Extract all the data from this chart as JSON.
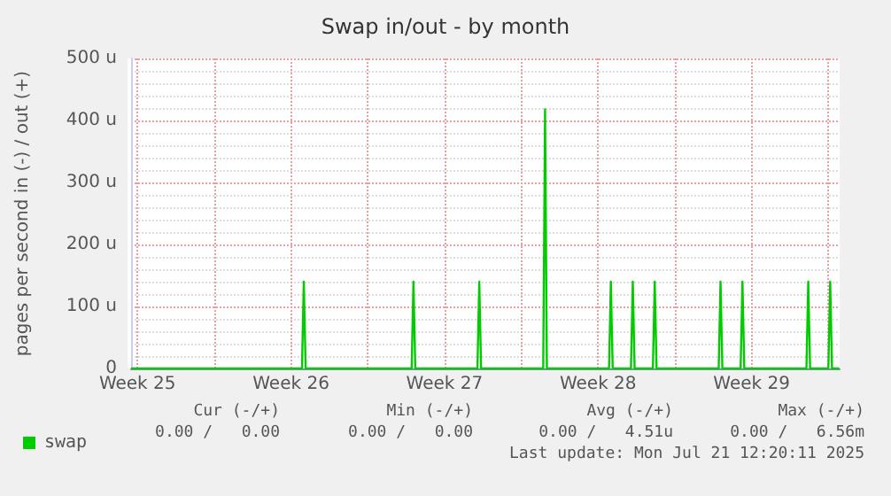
{
  "chart_data": {
    "type": "line",
    "title": "Swap in/out - by month",
    "ylabel": "pages per second in (-) / out (+)",
    "x": [
      "2025-06-19T05:00",
      "2025-06-27T00:00",
      "2025-06-27T02:00",
      "2025-06-27T04:00",
      "2025-07-02T00:00",
      "2025-07-02T02:00",
      "2025-07-02T04:00",
      "2025-07-05T00:00",
      "2025-07-05T02:00",
      "2025-07-05T04:00",
      "2025-07-08T00:00",
      "2025-07-08T02:00",
      "2025-07-08T04:00",
      "2025-07-11T00:00",
      "2025-07-11T02:00",
      "2025-07-11T04:00",
      "2025-07-12T00:00",
      "2025-07-12T02:00",
      "2025-07-12T04:00",
      "2025-07-13T00:00",
      "2025-07-13T02:00",
      "2025-07-13T04:00",
      "2025-07-16T00:00",
      "2025-07-16T02:00",
      "2025-07-16T04:00",
      "2025-07-17T00:00",
      "2025-07-17T02:00",
      "2025-07-17T04:00",
      "2025-07-20T00:00",
      "2025-07-20T02:00",
      "2025-07-20T04:00",
      "2025-07-21T00:00",
      "2025-07-21T02:00",
      "2025-07-21T04:00",
      "2025-07-21T12:00"
    ],
    "series": [
      {
        "name": "swap",
        "color": "#00cc00",
        "values": [
          0,
          0,
          140,
          0,
          0,
          140,
          0,
          0,
          140,
          0,
          0,
          418,
          0,
          0,
          140,
          0,
          0,
          140,
          0,
          0,
          140,
          0,
          0,
          140,
          0,
          0,
          140,
          0,
          0,
          140,
          0,
          0,
          140,
          0,
          0
        ]
      }
    ],
    "xlim": [
      "2025-06-19T05:00",
      "2025-07-21T12:20"
    ],
    "xticks": [
      {
        "value": "2025-06-19T12:00",
        "label": "Week 25"
      },
      {
        "value": "2025-06-23T00:00",
        "label": null
      },
      {
        "value": "2025-06-26T12:00",
        "label": "Week 26"
      },
      {
        "value": "2025-06-30T00:00",
        "label": null
      },
      {
        "value": "2025-07-03T12:00",
        "label": "Week 27"
      },
      {
        "value": "2025-07-07T00:00",
        "label": null
      },
      {
        "value": "2025-07-10T12:00",
        "label": "Week 28"
      },
      {
        "value": "2025-07-14T00:00",
        "label": null
      },
      {
        "value": "2025-07-17T12:00",
        "label": "Week 29"
      },
      {
        "value": "2025-07-21T00:00",
        "label": null
      }
    ],
    "ylim": [
      0,
      500
    ],
    "yticks": [
      0,
      {
        "value": 100,
        "label": "100 u"
      },
      {
        "value": 200,
        "label": "200 u"
      },
      {
        "value": 300,
        "label": "300 u"
      },
      {
        "value": 400,
        "label": "400 u"
      },
      {
        "value": 500,
        "label": "500 u"
      }
    ],
    "grid": true,
    "legend": "bottom left",
    "marker": "none",
    "line_style": "solid",
    "annotations": [
      "Cur (-/+)",
      "Min (-/+)",
      "Avg (-/+)",
      "Max (-/+)",
      "0.00 /   0.00",
      "0.00 /   0.00",
      "0.00 /   4.51u",
      "0.00 /   6.56m",
      "Last update: Mon Jul 21 12:20:11 2025"
    ]
  }
}
